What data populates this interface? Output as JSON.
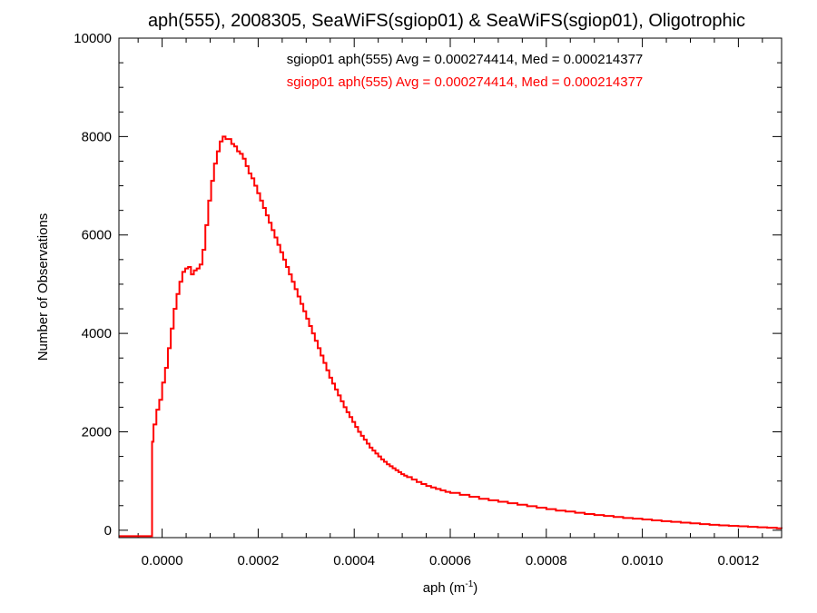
{
  "chart_data": {
    "type": "step",
    "title": "aph(555), 2008305, SeaWiFS(sgiop01) & SeaWiFS(sgiop01), Oligotrophic",
    "xlabel": "aph (m",
    "xlabel_sup": "-1",
    "xlabel_suffix": ")",
    "ylabel": "Number of Observations",
    "xlim": [
      -9e-05,
      0.00129
    ],
    "ylim": [
      -150,
      10000
    ],
    "x_ticks": [
      0.0,
      0.0002,
      0.0004,
      0.0006,
      0.0008,
      0.001,
      0.0012
    ],
    "x_tick_labels": [
      "0.0000",
      "0.0002",
      "0.0004",
      "0.0006",
      "0.0008",
      "0.0010",
      "0.0012"
    ],
    "y_ticks": [
      0,
      2000,
      4000,
      6000,
      8000,
      10000
    ],
    "y_tick_labels": [
      "0",
      "2000",
      "4000",
      "6000",
      "8000",
      "10000"
    ],
    "grid": false,
    "annotations": [
      {
        "text": "sgiop01 aph(555) Avg = 0.000274414, Med = 0.000214377",
        "color": "#000000"
      },
      {
        "text": "sgiop01 aph(555) Avg = 0.000274414, Med = 0.000214377",
        "color": "#ff0000"
      }
    ],
    "series": [
      {
        "color": "#ff0000",
        "x": [
          -9e-05,
          -2.1e-05,
          -1.8e-05,
          -1.2e-05,
          -6e-06,
          0.0,
          6e-06,
          1.2e-05,
          1.8e-05,
          2.4e-05,
          3e-05,
          3.6e-05,
          4.2e-05,
          4.8e-05,
          5.4e-05,
          6e-05,
          6.6e-05,
          7.2e-05,
          7.8e-05,
          8.4e-05,
          9e-05,
          9.6e-05,
          0.000102,
          0.000108,
          0.000114,
          0.00012,
          0.000126,
          0.000132,
          0.000138,
          0.000144,
          0.00015,
          0.000156,
          0.000162,
          0.000168,
          0.000174,
          0.00018,
          0.000186,
          0.000192,
          0.000198,
          0.000204,
          0.00021,
          0.000216,
          0.000222,
          0.000228,
          0.000234,
          0.00024,
          0.000246,
          0.000252,
          0.000258,
          0.000264,
          0.00027,
          0.000276,
          0.000282,
          0.000288,
          0.000294,
          0.0003,
          0.000306,
          0.000312,
          0.000318,
          0.000324,
          0.00033,
          0.000336,
          0.000342,
          0.000348,
          0.000354,
          0.00036,
          0.000366,
          0.000372,
          0.000378,
          0.000384,
          0.00039,
          0.000396,
          0.000402,
          0.000408,
          0.000414,
          0.00042,
          0.000426,
          0.000432,
          0.000438,
          0.000444,
          0.00045,
          0.000456,
          0.000462,
          0.000468,
          0.000474,
          0.00048,
          0.000486,
          0.000492,
          0.000498,
          0.000504,
          0.00051,
          0.00052,
          0.00053,
          0.00054,
          0.00055,
          0.00056,
          0.00057,
          0.00058,
          0.00059,
          0.0006,
          0.00062,
          0.00064,
          0.00066,
          0.00068,
          0.0007,
          0.00072,
          0.00074,
          0.00076,
          0.00078,
          0.0008,
          0.00082,
          0.00084,
          0.00086,
          0.00088,
          0.0009,
          0.00092,
          0.00094,
          0.00096,
          0.00098,
          0.001,
          0.00102,
          0.00104,
          0.00106,
          0.00108,
          0.0011,
          0.00112,
          0.00114,
          0.00116,
          0.00118,
          0.0012,
          0.00122,
          0.00124,
          0.00126,
          0.00128,
          0.00129
        ],
        "y": [
          -120,
          1800,
          2150,
          2450,
          2650,
          3000,
          3300,
          3700,
          4100,
          4500,
          4800,
          5050,
          5250,
          5320,
          5350,
          5200,
          5280,
          5320,
          5400,
          5700,
          6200,
          6700,
          7100,
          7450,
          7700,
          7900,
          8000,
          7950,
          7950,
          7850,
          7800,
          7700,
          7650,
          7550,
          7400,
          7250,
          7150,
          7000,
          6850,
          6700,
          6550,
          6400,
          6250,
          6100,
          5950,
          5800,
          5650,
          5500,
          5350,
          5200,
          5050,
          4900,
          4750,
          4600,
          4450,
          4300,
          4150,
          4000,
          3850,
          3700,
          3550,
          3400,
          3250,
          3100,
          2980,
          2860,
          2740,
          2620,
          2500,
          2400,
          2300,
          2200,
          2100,
          2000,
          1920,
          1840,
          1760,
          1680,
          1620,
          1560,
          1500,
          1440,
          1390,
          1340,
          1300,
          1260,
          1220,
          1180,
          1140,
          1110,
          1080,
          1030,
          980,
          940,
          900,
          870,
          840,
          810,
          780,
          760,
          720,
          680,
          640,
          610,
          580,
          550,
          520,
          490,
          460,
          430,
          400,
          380,
          355,
          330,
          310,
          290,
          270,
          250,
          235,
          220,
          200,
          185,
          170,
          155,
          140,
          125,
          110,
          100,
          90,
          80,
          70,
          60,
          50,
          40,
          35
        ]
      }
    ]
  }
}
